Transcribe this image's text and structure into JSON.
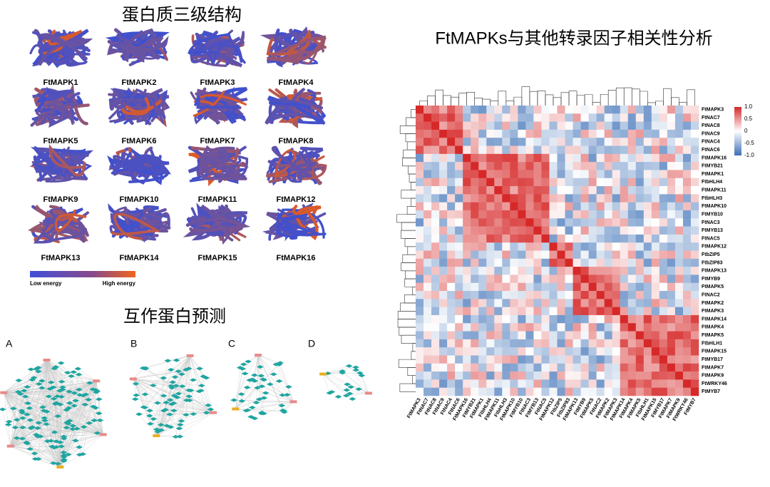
{
  "structure": {
    "title": "蛋白质三级结构",
    "proteins": [
      "FtMAPK1",
      "FtMAPK2",
      "FtMAPK3",
      "FtMAPK4",
      "FtMAPK5",
      "FtMAPK6",
      "FtMAPK7",
      "FtMAPK8",
      "FtMAPK9",
      "FtMAPK10",
      "FtMAPK11",
      "FtMAPK12",
      "FtMAPK13",
      "FtMAPK14",
      "FtMAPK15",
      "FtMAPK16"
    ],
    "scale": {
      "low": "Low energy",
      "high": "High energy"
    }
  },
  "interaction": {
    "title": "互作蛋白预测",
    "panels": [
      "A",
      "B",
      "C",
      "D"
    ]
  },
  "heatmap": {
    "title": "FtMAPKs与其他转录因子相关性分析",
    "rows": [
      "FtMAPK3",
      "FtNAC7",
      "FtNAC8",
      "FtNAC9",
      "FtNAC4",
      "FtNAC6",
      "FtMAPK16",
      "FtMYB21",
      "FtMAPK1",
      "FtbHLH4",
      "FtMAPK11",
      "FtbHLH3",
      "FtMAPK10",
      "FtMYB10",
      "FtNAC3",
      "FtMYB13",
      "FtNAC5",
      "FtMAPK12",
      "FtbZIP5",
      "FtbZIP83",
      "FtMAPK13",
      "FtMYB9",
      "FtMAPK5",
      "FtNAC2",
      "FtMAPK2",
      "FtMAPK3",
      "FtMAPK14",
      "FtMAPK4",
      "FtMAPK5",
      "FtbHLH1",
      "FtMAPK15",
      "FtMYB17",
      "FtMAPK7",
      "FtMAPK9",
      "FtWRKY46",
      "FtMYB7"
    ],
    "colorbar": [
      "1.0",
      "0.5",
      "0",
      "-0.5",
      "-1.0"
    ]
  }
}
